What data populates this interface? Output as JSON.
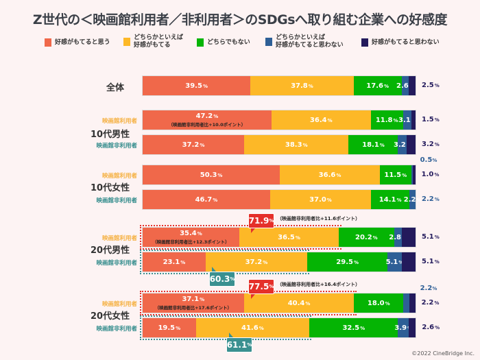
{
  "chart_data": {
    "type": "bar",
    "orientation": "horizontal-stacked-100",
    "title": "Z世代の＜映画館利用者／非利用者＞のSDGsへ取り組む企業への好感度",
    "legend_position": "top",
    "unit": "%",
    "series": [
      {
        "name": "好感がもてると思う",
        "color": "#f0684a"
      },
      {
        "name": "どちらかといえば好感がもてる",
        "color": "#fdb827"
      },
      {
        "name": "どちらでもない",
        "color": "#05b404"
      },
      {
        "name": "どちらかといえば好感がもてると思わない",
        "color": "#2e5f96"
      },
      {
        "name": "好感がもてると思わない",
        "color": "#231a5c"
      }
    ],
    "groups": [
      "全体",
      "10代男性",
      "10代女性",
      "20代男性",
      "20代女性"
    ],
    "sub_labels": {
      "user": "映画館利用者",
      "nonuser": "映画館非利用者"
    },
    "rows": [
      {
        "group": "全体",
        "sub": "",
        "values": [
          39.5,
          37.8,
          17.6,
          2.6,
          2.5
        ]
      },
      {
        "group": "10代男性",
        "sub": "user",
        "values": [
          47.2,
          36.4,
          11.8,
          3.1,
          1.5
        ],
        "note": "（映画館非利用者比+10.0ポイント）"
      },
      {
        "group": "10代男性",
        "sub": "nonuser",
        "values": [
          37.2,
          38.3,
          18.1,
          3.2,
          3.2
        ]
      },
      {
        "group": "10代女性",
        "sub": "user",
        "values": [
          50.3,
          36.6,
          11.5,
          0.5,
          1.0
        ],
        "side": "0.5"
      },
      {
        "group": "10代女性",
        "sub": "nonuser",
        "values": [
          46.7,
          37.0,
          14.1,
          2.2,
          0
        ]
      },
      {
        "group": "20代男性",
        "sub": "user",
        "values": [
          35.4,
          36.5,
          20.2,
          2.8,
          5.1
        ],
        "note": "（映画館非利用者比+12.3ポイント）",
        "total": "71.9",
        "total_note": "（映画館非利用者比+11.6ポイント）"
      },
      {
        "group": "20代男性",
        "sub": "nonuser",
        "values": [
          23.1,
          37.2,
          29.5,
          5.1,
          5.1
        ],
        "total": "60.3"
      },
      {
        "group": "20代女性",
        "sub": "user",
        "values": [
          37.1,
          40.4,
          18.0,
          2.2,
          2.2
        ],
        "note": "（映画館非利用者比+17.6ポイント）",
        "total": "77.5",
        "total_note": "（映画館非利用者比+16.4ポイント）",
        "side": "2.2"
      },
      {
        "group": "20代女性",
        "sub": "nonuser",
        "values": [
          19.5,
          41.6,
          32.5,
          3.9,
          2.6
        ],
        "total": "61.1"
      }
    ]
  },
  "copyright": "©2022 CineBridge Inc."
}
